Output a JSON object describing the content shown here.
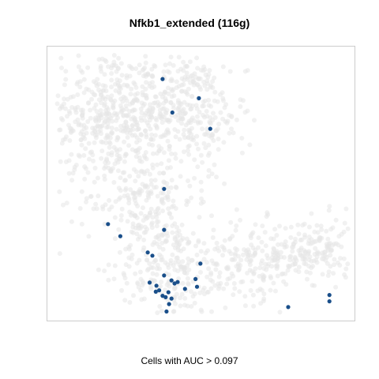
{
  "chart_data": {
    "type": "scatter",
    "title": "Nfkb1_extended (116g)",
    "xlabel": "Cells with AUC > 0.097",
    "ylabel": "",
    "xlim": [
      0,
      100
    ],
    "ylim": [
      0,
      100
    ],
    "grid": false,
    "legend": "none",
    "colors": {
      "background_cells": "#e6e6e6",
      "highlight_cells": "#1a4f8a",
      "frame": "#cccccc"
    },
    "series": [
      {
        "role": "background",
        "note_generation": "density cloud",
        "clusters": [
          {
            "cx": 18,
            "cy": 75,
            "sx": 9,
            "sy": 12,
            "n": 360
          },
          {
            "cx": 38,
            "cy": 78,
            "sx": 9,
            "sy": 10,
            "n": 300
          },
          {
            "cx": 50,
            "cy": 72,
            "sx": 7,
            "sy": 12,
            "n": 140
          },
          {
            "cx": 30,
            "cy": 45,
            "sx": 9,
            "sy": 9,
            "n": 200
          },
          {
            "cx": 38,
            "cy": 20,
            "sx": 8,
            "sy": 9,
            "n": 200
          },
          {
            "cx": 55,
            "cy": 20,
            "sx": 6,
            "sy": 8,
            "n": 90
          },
          {
            "cx": 70,
            "cy": 22,
            "sx": 7,
            "sy": 7,
            "n": 150
          },
          {
            "cx": 88,
            "cy": 26,
            "sx": 6,
            "sy": 6,
            "n": 150
          }
        ]
      },
      {
        "role": "highlight",
        "x": [
          37.4,
          49.2,
          40.6,
          52.9,
          37.9,
          19.7,
          23.7,
          37.9,
          32.6,
          34.1,
          49.7,
          37.9,
          40.3,
          42.3,
          33.2,
          35.4,
          36.3,
          35.2,
          37.4,
          39.3,
          41.3,
          44.7,
          48.1,
          48.6,
          38.4,
          40.3,
          39.5,
          38.7,
          78.2,
          91.6,
          91.6
        ],
        "y": [
          88.2,
          81.2,
          76.0,
          70.1,
          48.2,
          35.4,
          31.0,
          33.3,
          25.1,
          23.9,
          21.0,
          16.7,
          14.9,
          14.3,
          14.1,
          13.0,
          11.3,
          10.8,
          9.3,
          10.6,
          13.8,
          11.8,
          15.4,
          12.6,
          8.8,
          8.3,
          6.3,
          3.6,
          5.2,
          7.3,
          9.6
        ]
      }
    ]
  },
  "header": {
    "title": "Nfkb1_extended (116g)"
  },
  "footer": {
    "caption": "Cells with AUC > 0.097"
  }
}
